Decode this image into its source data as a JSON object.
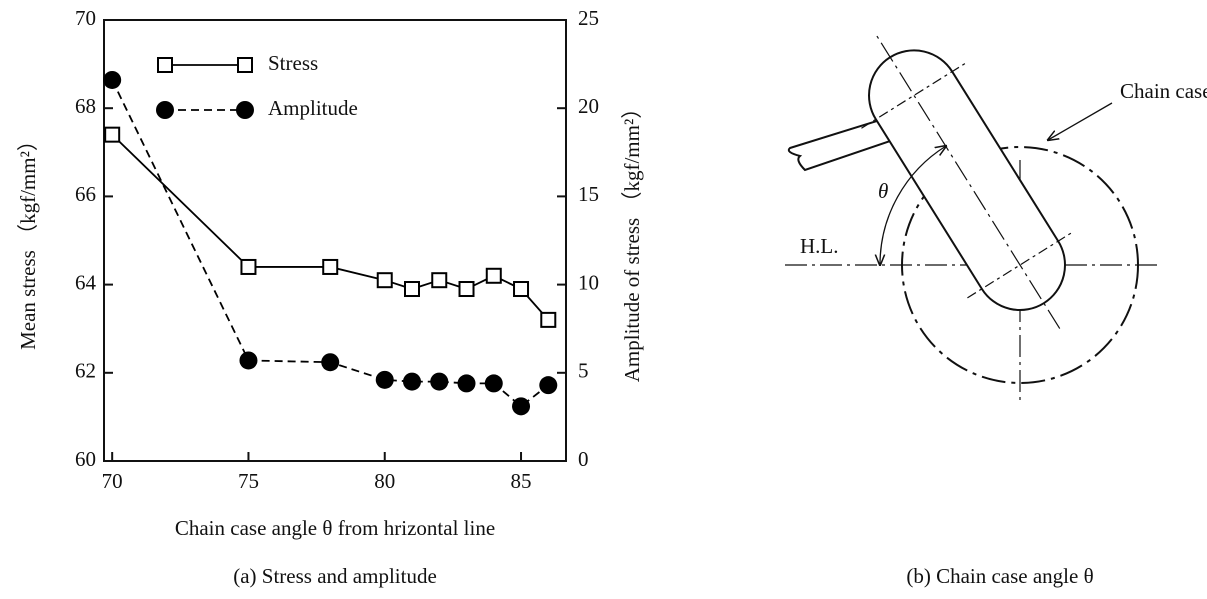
{
  "chart_data": {
    "type": "line",
    "x_label": "Chain case angle θ from hrizontal line",
    "y_label": "Mean stress （kgf/mm²）",
    "y2_label": "Amplitude of stress （kgf/mm²）",
    "caption": "(a)   Stress and amplitude",
    "x": [
      70,
      75,
      78,
      80,
      81,
      82,
      83,
      84,
      85,
      86
    ],
    "xlim": [
      69.7,
      86.65
    ],
    "xticks": [
      70,
      75,
      80,
      85
    ],
    "ylim": [
      60,
      70
    ],
    "yticks": [
      60,
      62,
      64,
      66,
      68,
      70
    ],
    "y2lim": [
      0,
      25
    ],
    "y2ticks": [
      0,
      5,
      10,
      15,
      20,
      25
    ],
    "legend": "upper left",
    "series": [
      {
        "name": "Stress",
        "color": "#000000",
        "marker": "square",
        "linestyle": "solid",
        "values": [
          67.4,
          64.4,
          64.4,
          64.1,
          63.9,
          64.1,
          63.9,
          64.2,
          63.9,
          63.2
        ]
      },
      {
        "name": "Amplitude",
        "color": "#000000",
        "marker": "circle",
        "linestyle": "dashed",
        "axis": "y2",
        "values": [
          21.6,
          5.7,
          5.6,
          4.6,
          4.5,
          4.5,
          4.4,
          4.4,
          3.1,
          4.3
        ]
      }
    ]
  },
  "diagram": {
    "chain_case": "Chain case",
    "theta": "θ",
    "horizontal_line": "H.L.",
    "caption": "(b)   Chain case angle θ"
  }
}
